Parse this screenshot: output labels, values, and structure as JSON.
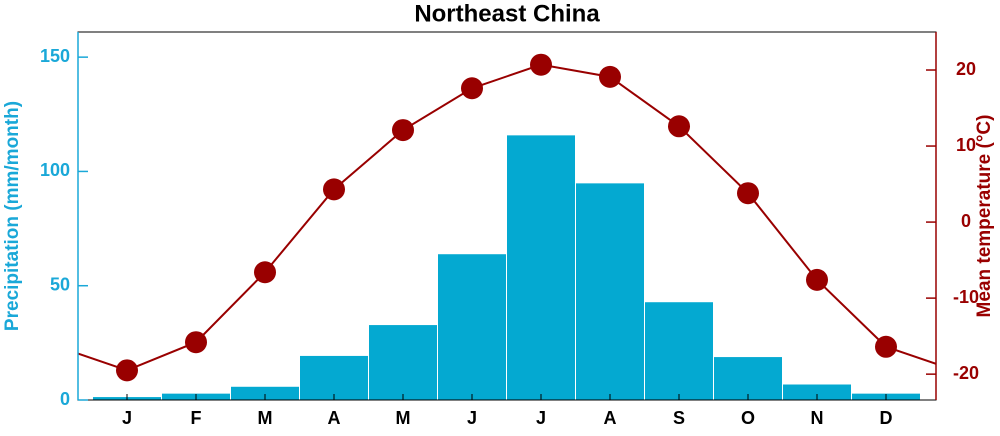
{
  "chart_data": {
    "type": "bar-line",
    "title": "Northeast China",
    "ylabel": "Precipitation (mm/month)",
    "y2label": "Mean temperature (°C)",
    "categories": [
      "J",
      "F",
      "M",
      "A",
      "M",
      "J",
      "J",
      "A",
      "S",
      "O",
      "N",
      "D"
    ],
    "series": [
      {
        "name": "Precipitation",
        "type": "bar",
        "color": "#04a9d1",
        "values": [
          1.5,
          3,
          6,
          19.5,
          33,
          64,
          116,
          95,
          43,
          19,
          7,
          3
        ]
      },
      {
        "name": "Mean temperature",
        "type": "line",
        "axis": "y2",
        "color": "#990000",
        "values": [
          -19.5,
          -15.8,
          -6.6,
          4.3,
          12.1,
          17.6,
          20.7,
          19.1,
          12.6,
          3.8,
          -7.6,
          -16.4
        ]
      }
    ],
    "ylim": [
      0,
      161
    ],
    "yticks": [
      0,
      50,
      100,
      150
    ],
    "y2lim": [
      -23.4,
      25
    ],
    "y2ticks": [
      -20,
      -10,
      0,
      10,
      20
    ]
  }
}
